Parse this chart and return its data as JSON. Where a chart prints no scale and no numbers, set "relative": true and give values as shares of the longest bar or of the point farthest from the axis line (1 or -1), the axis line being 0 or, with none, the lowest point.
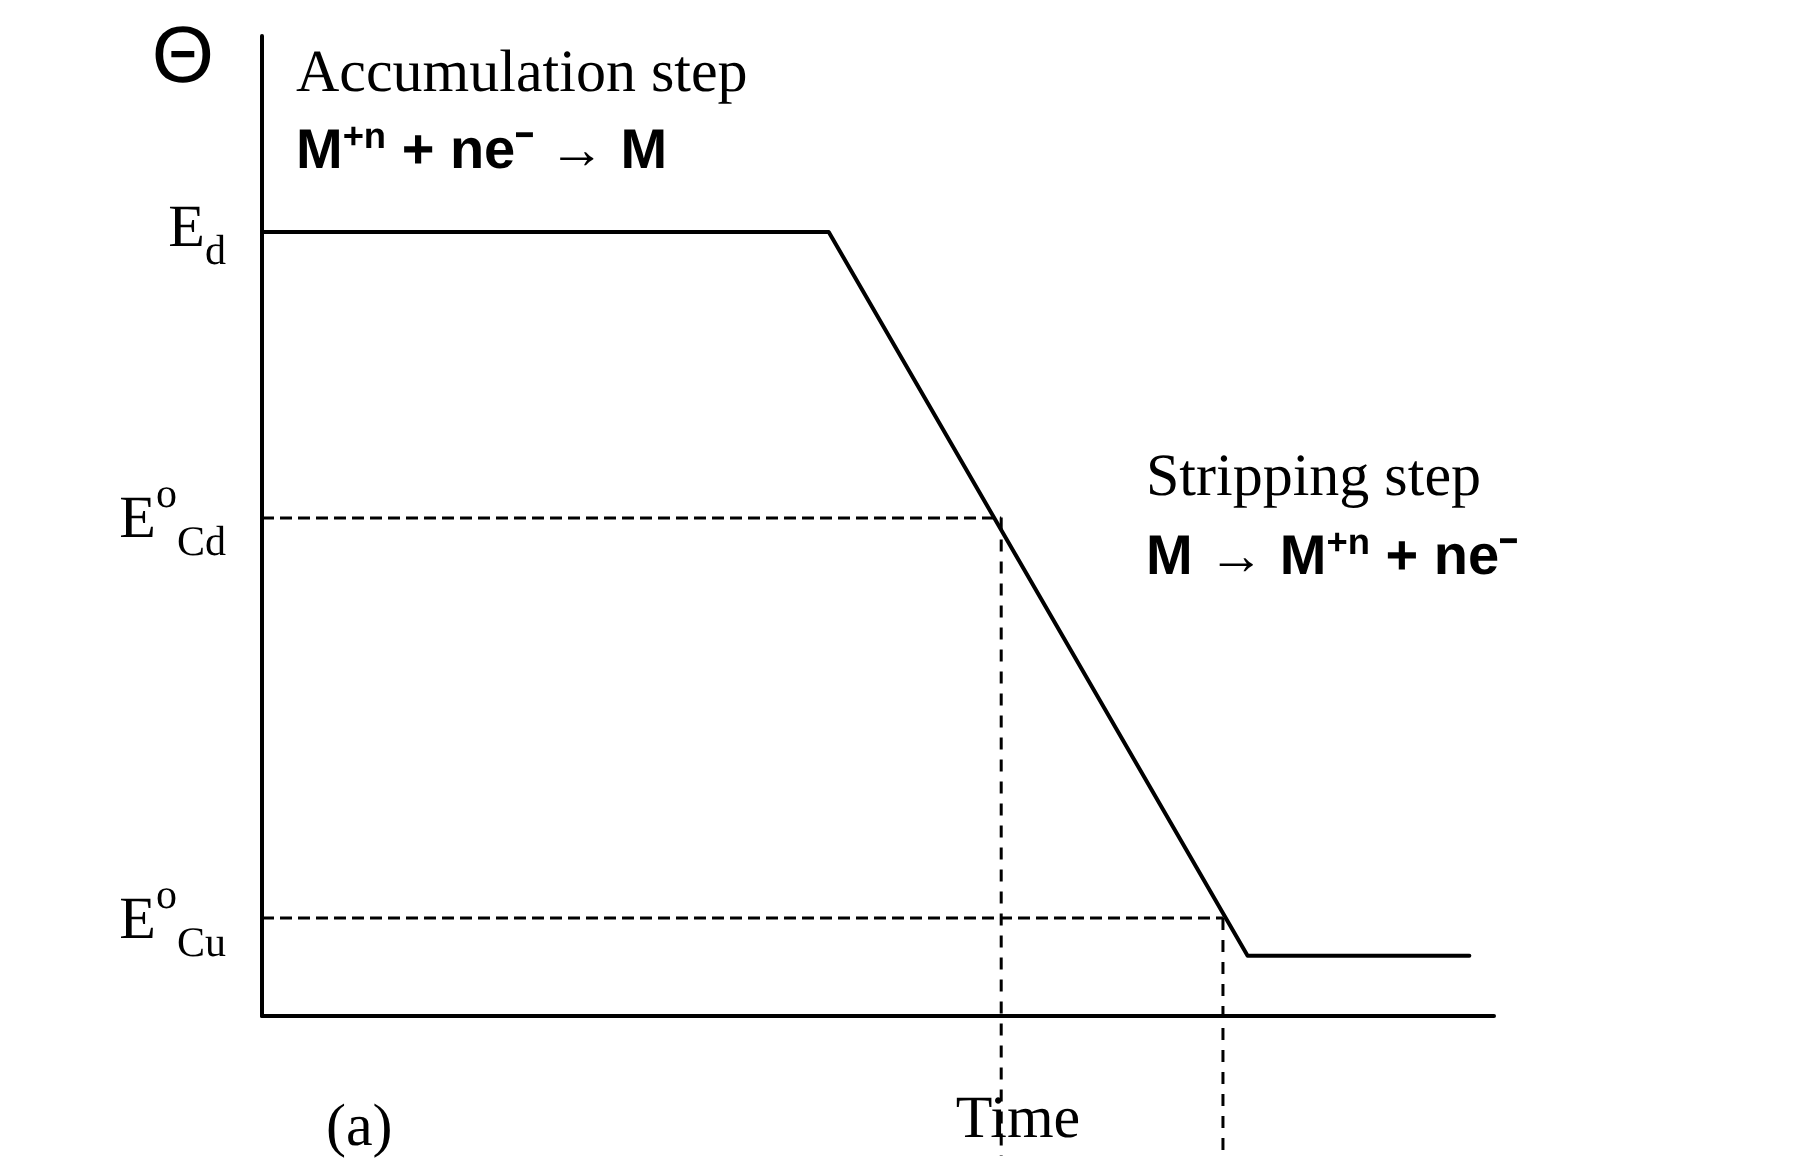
{
  "chart_data": {
    "type": "line",
    "ylabel": "Θ",
    "xlabel": "Time",
    "annotations": [
      "Accumulation step",
      "M$^{+n}$ + ne⁻ → M",
      "Stripping step",
      "M → M$^{+n}$ + ne⁻",
      "(a)",
      "E$_{d}$"
    ],
    "relative": true,
    "line_style": "solid",
    "categories": [
      null,
      null,
      null,
      null,
      null,
      null,
      null,
      null,
      null,
      null,
      null,
      null,
      null,
      null,
      null,
      null,
      null,
      null,
      null,
      null,
      null,
      null,
      null,
      null,
      null,
      null,
      null,
      null,
      null,
      null,
      null,
      null,
      null,
      null,
      null,
      null,
      null,
      null,
      null,
      null,
      null,
      null,
      null,
      null,
      null,
      null,
      null,
      null,
      null,
      null,
      null
    ],
    "grid": false,
    "marker": "none",
    "ref_lines": [
      {
        "axis": "y",
        "value": 0.636,
        "label": "E$^{o}$$_{Cd}$",
        "color": "#000000",
        "line_style": "dashed"
      },
      {
        "axis": "y",
        "value": 0.125,
        "label": "E$^{o}$$_{Cu}$",
        "color": "#000000",
        "line_style": "dashed"
      }
    ],
    "series": [
      {
        "color": "#000000",
        "values": [
          1,
          null,
          null,
          null,
          null,
          null,
          null,
          null,
          null,
          null,
          null,
          null,
          null,
          null,
          null,
          null,
          null,
          null,
          null,
          null,
          null,
          null,
          null,
          1,
          null,
          null,
          null,
          null,
          null,
          null,
          null,
          null,
          null,
          null,
          null,
          null,
          null,
          null,
          null,
          null,
          0.077,
          null,
          null,
          null,
          null,
          null,
          null,
          null,
          null,
          0.077,
          null
        ]
      }
    ]
  }
}
